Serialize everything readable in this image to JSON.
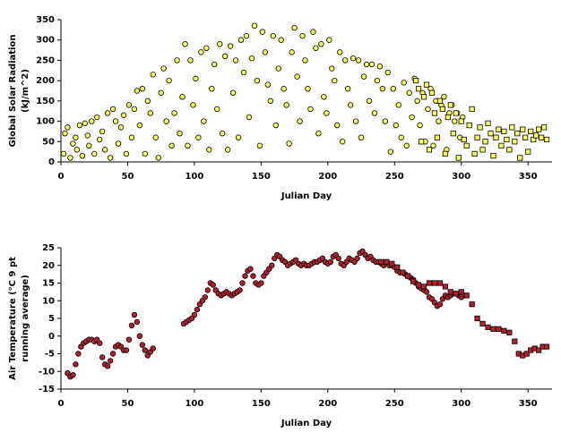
{
  "chart_data": [
    {
      "type": "scatter",
      "xlabel": "Julian Day",
      "ylabel": [
        "Global Solar Radiation",
        "(kJ/m^2)"
      ],
      "xlim": [
        0,
        368
      ],
      "xticks": [
        0,
        50,
        100,
        150,
        200,
        250,
        300,
        350
      ],
      "ylim": [
        0,
        350
      ],
      "yticks": [
        0,
        50,
        100,
        150,
        200,
        250,
        300,
        350
      ],
      "series": [
        {
          "marker": "circle",
          "color": "#ffff66",
          "x": [
            2,
            3,
            5,
            7,
            9,
            11,
            12,
            14,
            16,
            18,
            20,
            21,
            23,
            25,
            27,
            29,
            31,
            33,
            35,
            37,
            39,
            41,
            43,
            45,
            47,
            49,
            51,
            53,
            55,
            57,
            59,
            61,
            63,
            65,
            67,
            69,
            71,
            73,
            75,
            77,
            79,
            81,
            83,
            85,
            87,
            89,
            91,
            93,
            95,
            97,
            99,
            101,
            103,
            105,
            107,
            109,
            111,
            113,
            115,
            117,
            119,
            121,
            123,
            125,
            127,
            129,
            131,
            133,
            135,
            137,
            139,
            141,
            143,
            145,
            147,
            149,
            151,
            153,
            155,
            157,
            159,
            161,
            163,
            165,
            167,
            169,
            171,
            173,
            175,
            177,
            179,
            181,
            183,
            185,
            187,
            189,
            191,
            193,
            195,
            197,
            199,
            201,
            203,
            205,
            207,
            209,
            211,
            213,
            215,
            217,
            219,
            221,
            223,
            225,
            227,
            229,
            231,
            233,
            235,
            237,
            239,
            241,
            243,
            245,
            247,
            249,
            251,
            253,
            255,
            257,
            259,
            261,
            263,
            265,
            267,
            269,
            271,
            273,
            275,
            277,
            279,
            281,
            283,
            285,
            287,
            289,
            291,
            293,
            295,
            297,
            299,
            301
          ],
          "values": [
            20,
            70,
            85,
            10,
            45,
            60,
            30,
            90,
            15,
            95,
            65,
            40,
            100,
            20,
            110,
            55,
            75,
            30,
            120,
            10,
            130,
            100,
            45,
            85,
            115,
            20,
            140,
            60,
            130,
            175,
            90,
            180,
            20,
            150,
            120,
            215,
            60,
            10,
            170,
            230,
            100,
            200,
            40,
            120,
            250,
            70,
            160,
            290,
            40,
            250,
            140,
            205,
            60,
            270,
            100,
            280,
            30,
            180,
            240,
            130,
            290,
            70,
            260,
            30,
            285,
            170,
            250,
            60,
            300,
            220,
            310,
            110,
            255,
            335,
            200,
            40,
            320,
            270,
            190,
            150,
            310,
            90,
            230,
            300,
            180,
            140,
            45,
            270,
            330,
            210,
            100,
            310,
            250,
            180,
            130,
            320,
            280,
            70,
            290,
            160,
            120,
            300,
            230,
            200,
            90,
            270,
            50,
            250,
            180,
            140,
            255,
            100,
            250,
            60,
            210,
            240,
            150,
            240,
            120,
            200,
            235,
            180,
            100,
            220,
            25,
            180,
            90,
            140,
            60,
            195,
            40,
            170,
            110,
            205,
            150,
            90,
            170,
            50,
            130,
            180,
            40,
            150,
            100,
            140,
            160,
            30,
            120,
            140,
            100,
            120,
            60,
            110
          ]
        },
        {
          "marker": "square",
          "color": "#ffff66",
          "x": [
            266,
            268,
            270,
            272,
            274,
            276,
            278,
            280,
            282,
            284,
            286,
            288,
            290,
            292,
            294,
            296,
            298,
            300,
            302,
            304,
            306,
            308,
            310,
            312,
            314,
            316,
            318,
            320,
            322,
            324,
            326,
            328,
            330,
            332,
            334,
            336,
            338,
            340,
            342,
            344,
            346,
            348,
            350,
            352,
            354,
            356,
            358,
            360,
            362,
            364
          ],
          "values": [
            200,
            180,
            50,
            160,
            190,
            30,
            170,
            120,
            60,
            150,
            130,
            20,
            110,
            140,
            70,
            120,
            10,
            100,
            55,
            40,
            90,
            130,
            20,
            60,
            85,
            30,
            50,
            95,
            70,
            15,
            60,
            80,
            40,
            75,
            55,
            30,
            85,
            50,
            70,
            10,
            80,
            60,
            25,
            75,
            55,
            65,
            80,
            60,
            85,
            55
          ]
        }
      ]
    },
    {
      "type": "scatter",
      "xlabel": "Julian Day",
      "ylabel": [
        "Air Temperature (°C 9 pt",
        "running average)"
      ],
      "xlim": [
        0,
        368
      ],
      "xticks": [
        0,
        50,
        100,
        150,
        200,
        250,
        300,
        350
      ],
      "ylim": [
        -15,
        25
      ],
      "yticks": [
        -15,
        -10,
        -5,
        0,
        5,
        10,
        15,
        20,
        25
      ],
      "series": [
        {
          "marker": "circle",
          "color": "#b3202c",
          "x": [
            5,
            7,
            9,
            11,
            13,
            15,
            17,
            19,
            21,
            23,
            25,
            27,
            29,
            31,
            33,
            35,
            37,
            39,
            41,
            43,
            45,
            47,
            49,
            51,
            53,
            55,
            57,
            59,
            61,
            63,
            65,
            67,
            69,
            92,
            94,
            96,
            98,
            100,
            102,
            104,
            106,
            108,
            110,
            112,
            114,
            116,
            118,
            120,
            122,
            124,
            126,
            128,
            130,
            132,
            134,
            136,
            138,
            140,
            142,
            144,
            146,
            148,
            150,
            152,
            154,
            156,
            158,
            160,
            162,
            164,
            166,
            168,
            170,
            172,
            174,
            176,
            178,
            180,
            182,
            184,
            186,
            188,
            190,
            192,
            194,
            196,
            198,
            200,
            202,
            204,
            206,
            208,
            210,
            212,
            214,
            216,
            218,
            220,
            222,
            224,
            226,
            228,
            230,
            232,
            234,
            236,
            238,
            240,
            242,
            244,
            246,
            248,
            250,
            252,
            254,
            256,
            258,
            260,
            262,
            264,
            266,
            268,
            270,
            272,
            274,
            276,
            278,
            280,
            282,
            284,
            286,
            288,
            290,
            292,
            294,
            296,
            298,
            300
          ],
          "values": [
            -10.5,
            -11.5,
            -11,
            -8,
            -5,
            -3,
            -2,
            -1.5,
            -1,
            -1,
            -1.5,
            -1,
            -2,
            -6,
            -8,
            -8.5,
            -7,
            -5,
            -3,
            -2.5,
            -3,
            -4,
            -4,
            -1,
            3,
            6,
            4,
            0,
            -2.5,
            -4,
            -5.5,
            -4.5,
            -3.5,
            3.5,
            4,
            4.5,
            5,
            6,
            7.5,
            9,
            10,
            11,
            13,
            15,
            14.5,
            13,
            12,
            11.5,
            12,
            12.5,
            12,
            11.5,
            12,
            12.5,
            13,
            15,
            17,
            18.5,
            19,
            17,
            15,
            14.5,
            15,
            17,
            18,
            19,
            20,
            22,
            23,
            22.5,
            21.5,
            21,
            20,
            20.5,
            21,
            21.5,
            20.5,
            20,
            20.5,
            20,
            20,
            20.5,
            21,
            21,
            21.5,
            22,
            21,
            20.5,
            21,
            22.5,
            23,
            22,
            20.5,
            20,
            21,
            22,
            21.5,
            21,
            22,
            23.5,
            24,
            23,
            22,
            22.5,
            21.5,
            21,
            21,
            20.5,
            20,
            20.5,
            20,
            20,
            19.5,
            18.5,
            18,
            18,
            17.5,
            17,
            16.5,
            16,
            15,
            14,
            13.5,
            13,
            12.5,
            11,
            10.5,
            9.5,
            8.5,
            9,
            10.5,
            11.5,
            11,
            11.5,
            12,
            12,
            11.5,
            11
          ]
        },
        {
          "marker": "square",
          "color": "#b3202c",
          "x": [
            240,
            244,
            248,
            252,
            256,
            260,
            264,
            268,
            272,
            276,
            280,
            284,
            288,
            292,
            296,
            300,
            304,
            308,
            312,
            316,
            320,
            324,
            328,
            332,
            336,
            340,
            343,
            346,
            349,
            352,
            355,
            358,
            361,
            364
          ],
          "values": [
            21,
            21,
            20.5,
            19.5,
            18,
            17,
            15.5,
            14.5,
            14,
            15,
            15,
            15,
            14,
            12.5,
            12,
            12.5,
            11.5,
            9,
            5,
            3.5,
            2.5,
            2,
            2,
            1.5,
            1,
            -1.5,
            -5,
            -5.5,
            -5,
            -4,
            -3.5,
            -4,
            -3,
            -3
          ]
        }
      ]
    }
  ]
}
